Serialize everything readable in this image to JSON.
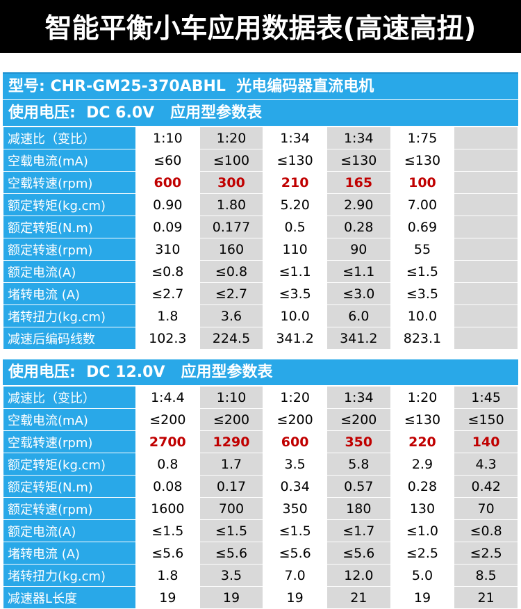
{
  "title": "智能平衡小车应用数据表(高速高扭)",
  "model_line": "型号: CHR-GM25-370ABHL  光电编码器直流电机",
  "sections": [
    {
      "header": "使用电压:  DC 6.0V   应用型参数表",
      "columns": 6,
      "rows": [
        {
          "label": "减速比（变比）",
          "values": [
            "1:10",
            "1:20",
            "1:34",
            "1:34",
            "1:75",
            ""
          ]
        },
        {
          "label": "空载电流(mA)",
          "values": [
            "≤60",
            "≤100",
            "≤130",
            "≤130",
            "≤130",
            ""
          ]
        },
        {
          "label": "空载转速(rpm)",
          "highlight": true,
          "values": [
            "600",
            "300",
            "210",
            "165",
            "100",
            ""
          ]
        },
        {
          "label": "额定转矩(kg.cm)",
          "values": [
            "0.90",
            "1.80",
            "5.20",
            "2.90",
            "7.00",
            ""
          ]
        },
        {
          "label": "额定转矩(N.m)",
          "values": [
            "0.09",
            "0.177",
            "0.5",
            "0.28",
            "0.69",
            ""
          ]
        },
        {
          "label": "额定转速(rpm)",
          "values": [
            "310",
            "160",
            "110",
            "90",
            "55",
            ""
          ]
        },
        {
          "label": "额定电流(A)",
          "values": [
            "≤0.8",
            "≤0.8",
            "≤1.1",
            "≤1.1",
            "≤1.5",
            ""
          ]
        },
        {
          "label": "堵转电流 (A)",
          "values": [
            "≤2.7",
            "≤2.7",
            "≤3.5",
            "≤3.0",
            "≤3.5",
            ""
          ]
        },
        {
          "label": "堵转扭力(kg.cm)",
          "values": [
            "1.8",
            "3.6",
            "10.0",
            "6.0",
            "10.0",
            ""
          ]
        },
        {
          "label": "减速后编码线数",
          "values": [
            "102.3",
            "224.5",
            "341.2",
            "341.2",
            "823.1",
            ""
          ]
        }
      ]
    },
    {
      "header": "使用电压:  DC 12.0V   应用型参数表",
      "columns": 6,
      "rows": [
        {
          "label": "减速比（变比）",
          "values": [
            "1:4.4",
            "1:10",
            "1:20",
            "1:34",
            "1:20",
            "1:45"
          ]
        },
        {
          "label": "空载电流(mA)",
          "values": [
            "≤200",
            "≤200",
            "≤200",
            "≤200",
            "≤130",
            "≤150"
          ]
        },
        {
          "label": "空载转速(rpm)",
          "highlight": true,
          "values": [
            "2700",
            "1290",
            "600",
            "350",
            "220",
            "140"
          ]
        },
        {
          "label": "额定转矩(kg.cm)",
          "values": [
            "0.8",
            "1.7",
            "3.5",
            "5.8",
            "2.9",
            "4.3"
          ]
        },
        {
          "label": "额定转矩(N.m)",
          "values": [
            "0.08",
            "0.17",
            "0.34",
            "0.57",
            "0.28",
            "0.42"
          ]
        },
        {
          "label": "额定转速(rpm)",
          "values": [
            "1600",
            "700",
            "350",
            "180",
            "130",
            "70"
          ]
        },
        {
          "label": "额定电流(A)",
          "values": [
            "≤1.5",
            "≤1.5",
            "≤1.5",
            "≤1.7",
            "≤1.0",
            "≤0.8"
          ]
        },
        {
          "label": "堵转电流 (A)",
          "values": [
            "≤5.6",
            "≤5.6",
            "≤5.6",
            "≤5.6",
            "≤2.5",
            "≤2.5"
          ]
        },
        {
          "label": "堵转扭力(kg.cm)",
          "values": [
            "1.8",
            "3.5",
            "7.0",
            "12.0",
            "5.0",
            "8.5"
          ]
        },
        {
          "label": "减速器L长度",
          "values": [
            "19",
            "19",
            "19",
            "21",
            "19",
            "21"
          ]
        }
      ]
    }
  ],
  "colors": {
    "header_blue": "#29a8e8",
    "title_bg": "#000000",
    "highlight_red": "#c00000",
    "alt_gray": "#d9d9d9"
  }
}
